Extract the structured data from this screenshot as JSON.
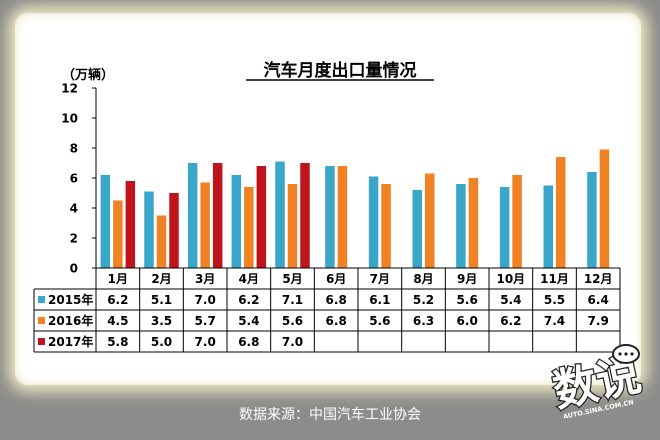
{
  "chart_data": {
    "type": "bar",
    "title": "汽车月度出口量情况",
    "ylabel": "（万辆）",
    "ylim": [
      0,
      12
    ],
    "yticks": [
      0,
      2,
      4,
      6,
      8,
      10,
      12
    ],
    "grid": false,
    "legend_placement": "table-left",
    "categories": [
      "1月",
      "2月",
      "3月",
      "4月",
      "5月",
      "6月",
      "7月",
      "8月",
      "9月",
      "10月",
      "11月",
      "12月"
    ],
    "series": [
      {
        "name": "2015年",
        "color": "#3aa7c9",
        "values": [
          6.2,
          5.1,
          7.0,
          6.2,
          7.1,
          6.8,
          6.1,
          5.2,
          5.6,
          5.4,
          5.5,
          6.4
        ]
      },
      {
        "name": "2016年",
        "color": "#f08224",
        "values": [
          4.5,
          3.5,
          5.7,
          5.4,
          5.6,
          6.8,
          5.6,
          6.3,
          6.0,
          6.2,
          7.4,
          7.9
        ]
      },
      {
        "name": "2017年",
        "color": "#c0141c",
        "values": [
          5.8,
          5.0,
          7.0,
          6.8,
          7.0,
          null,
          null,
          null,
          null,
          null,
          null,
          null
        ]
      }
    ]
  },
  "source": "数据来源：中国汽车工业协会",
  "watermark": {
    "text": "数说",
    "sub": "AUTO.SINA.COM.CN"
  }
}
